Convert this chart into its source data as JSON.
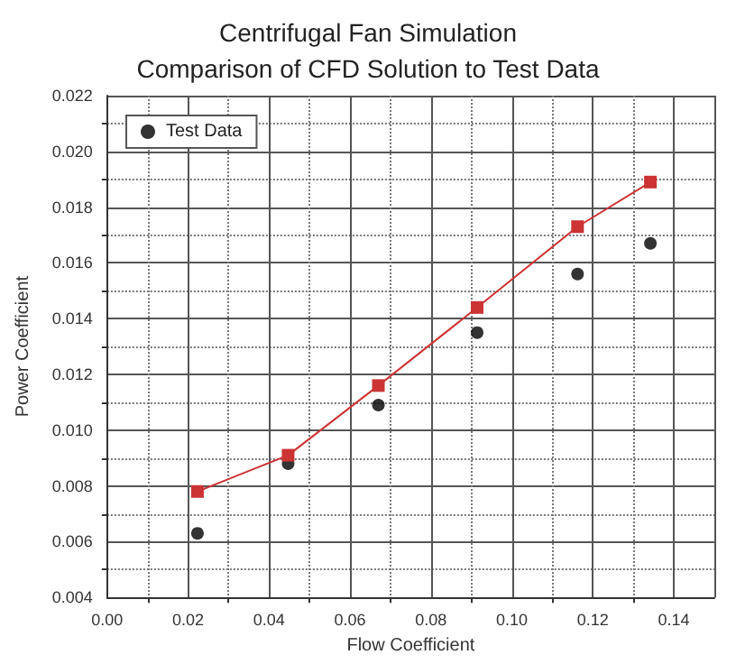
{
  "chart_data": {
    "type": "line",
    "title": "Centrifugal Fan Simulation",
    "subtitle": "Comparison of CFD Solution to Test Data",
    "xlabel": "Flow Coefficient",
    "ylabel": "Power Coefficient",
    "xlim": [
      0,
      0.15
    ],
    "xticks": [
      {
        "value": 0,
        "label": "0.00"
      },
      0.02,
      0.04,
      0.06,
      0.08,
      {
        "value": 0.1,
        "label": "0.10"
      },
      0.12,
      0.14
    ],
    "ylim": [
      0.004,
      0.022
    ],
    "yticks": [
      0.004,
      0.006,
      0.008,
      {
        "value": 0.01,
        "label": "0.010"
      },
      0.012,
      0.014,
      0.016,
      0.018,
      {
        "value": 0.02,
        "label": "0.020"
      },
      0.022
    ],
    "grid": true,
    "legend": "top left",
    "series": [
      {
        "type": "line",
        "color": "#cc3333",
        "marker": "square",
        "line_style": "solid",
        "x": [
          0.0223,
          0.0447,
          0.067,
          0.0914,
          0.1162,
          0.1342
        ],
        "values": [
          0.0078,
          0.0091,
          0.0116,
          0.0144,
          0.0173,
          0.0189
        ]
      },
      {
        "type": "scatter",
        "name": "Test Data",
        "color": "#000000",
        "marker": "circle",
        "x": [
          0.0223,
          0.0447,
          0.067,
          0.0914,
          0.1162,
          0.1342
        ],
        "values": [
          0.0063,
          0.0088,
          0.0109,
          0.0135,
          0.0156,
          0.0167
        ]
      }
    ]
  }
}
